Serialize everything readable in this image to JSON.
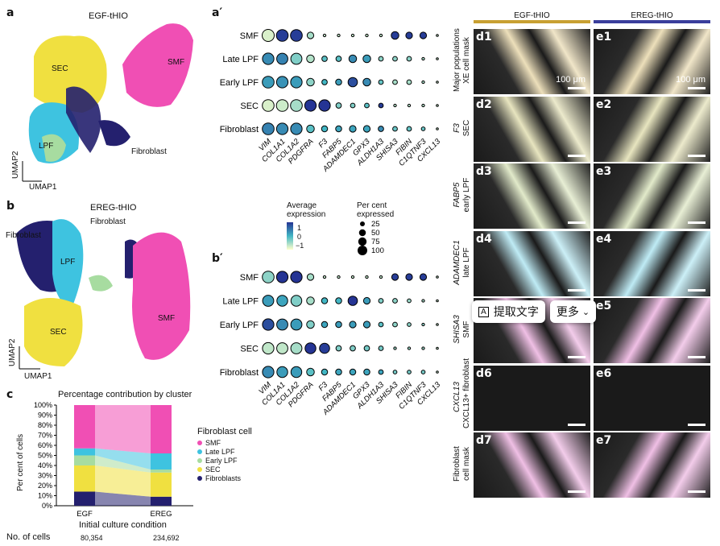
{
  "panels": {
    "a": "a",
    "b": "b",
    "c": "c",
    "a2": "a′",
    "b2": "b′"
  },
  "umap_a": {
    "title": "EGF-tHIO",
    "labels": {
      "smf": "SMF",
      "sec": "SEC",
      "lpf": "LPF",
      "fib": "Fibroblast"
    },
    "xaxis": "UMAP1",
    "yaxis": "UMAP2"
  },
  "umap_b": {
    "title": "EREG-tHIO",
    "labels": {
      "smf": "SMF",
      "sec": "SEC",
      "lpf": "LPF",
      "fib1": "Fibroblast",
      "fib2": "Fibroblast"
    },
    "xaxis": "UMAP1",
    "yaxis": "UMAP2"
  },
  "colors": {
    "smf": "#f04fb4",
    "late": "#3ec3e0",
    "early": "#a7dca0",
    "sec": "#f0e040",
    "fib": "#24206e"
  },
  "chart_data": [
    {
      "type": "scatter",
      "id": "dotplot_a",
      "genes": [
        "VIM",
        "COL1A1",
        "COL1A2",
        "PDGFRA",
        "F3",
        "FABP5",
        "ADAMDEC1",
        "GPX3",
        "ALDH1A3",
        "SHISA3",
        "FIBIN",
        "C1QTNF3",
        "CXCL13"
      ],
      "rows": [
        "SMF",
        "Late LPF",
        "Early LPF",
        "SEC",
        "Fibroblast"
      ],
      "pct": [
        [
          100,
          95,
          95,
          30,
          5,
          5,
          5,
          5,
          5,
          40,
          30,
          30,
          3
        ],
        [
          90,
          85,
          85,
          40,
          20,
          20,
          40,
          40,
          15,
          15,
          15,
          5,
          3
        ],
        [
          95,
          90,
          90,
          40,
          20,
          25,
          60,
          40,
          15,
          15,
          15,
          5,
          3
        ],
        [
          95,
          95,
          95,
          90,
          90,
          20,
          15,
          15,
          15,
          5,
          5,
          5,
          3
        ],
        [
          95,
          90,
          90,
          40,
          25,
          25,
          30,
          30,
          20,
          15,
          15,
          10,
          3
        ]
      ],
      "expr": [
        [
          -1.2,
          1.4,
          1.4,
          -0.8,
          -1,
          -1,
          -1,
          -1,
          -1,
          1.4,
          1.4,
          1.4,
          -1
        ],
        [
          0.5,
          0.6,
          -0.5,
          -0.9,
          -0.2,
          -0.2,
          0.5,
          0.3,
          -0.6,
          -0.6,
          -0.6,
          -0.8,
          -1
        ],
        [
          0.3,
          0.4,
          0.3,
          -0.6,
          0,
          0.3,
          1.2,
          0.5,
          -0.3,
          -0.8,
          -0.8,
          -0.8,
          -1
        ],
        [
          -1.2,
          -1.1,
          -0.8,
          1.5,
          1.5,
          -0.5,
          -0.5,
          -0.2,
          1.4,
          -0.9,
          -0.9,
          -0.9,
          -1
        ],
        [
          0.6,
          0.5,
          0.5,
          -0.2,
          0,
          0.2,
          0.2,
          0.2,
          0.5,
          -0.3,
          -0.3,
          -0.3,
          -1
        ]
      ]
    },
    {
      "type": "scatter",
      "id": "dotplot_b",
      "genes": [
        "VIM",
        "COL1A1",
        "COL1A2",
        "PDGFRA",
        "F3",
        "FABP5",
        "ADAMDEC1",
        "GPX3",
        "ALDH1A3",
        "SHISA3",
        "FIBIN",
        "C1QTNF3",
        "CXCL13"
      ],
      "rows": [
        "SMF",
        "Late LPF",
        "Early LPF",
        "SEC",
        "Fibroblast"
      ],
      "pct": [
        [
          95,
          90,
          90,
          30,
          5,
          5,
          5,
          5,
          5,
          30,
          30,
          30,
          3
        ],
        [
          85,
          80,
          80,
          40,
          25,
          25,
          60,
          30,
          15,
          15,
          10,
          5,
          3
        ],
        [
          90,
          85,
          85,
          40,
          25,
          25,
          30,
          30,
          15,
          15,
          10,
          5,
          3
        ],
        [
          90,
          85,
          85,
          80,
          70,
          20,
          20,
          20,
          15,
          5,
          5,
          5,
          3
        ],
        [
          90,
          80,
          80,
          40,
          25,
          25,
          25,
          25,
          15,
          10,
          10,
          10,
          3
        ]
      ],
      "expr": [
        [
          -0.6,
          1.5,
          1.5,
          -0.8,
          -1,
          -1,
          -1,
          -1,
          -1,
          1.4,
          1.4,
          1.4,
          -1
        ],
        [
          0.3,
          0.2,
          -0.5,
          -0.8,
          0,
          0,
          1.5,
          0.3,
          -0.5,
          -0.6,
          -0.7,
          -0.8,
          -1
        ],
        [
          1.2,
          0.5,
          0.3,
          -0.5,
          0.2,
          0.3,
          0.3,
          0.3,
          -0.2,
          -0.6,
          -0.6,
          -0.6,
          -1
        ],
        [
          -1,
          -1,
          -0.8,
          1.5,
          1.4,
          -0.5,
          -0.5,
          -0.4,
          -0.4,
          -0.7,
          -0.7,
          -0.7,
          -1
        ],
        [
          0.5,
          0.3,
          0.3,
          -0.2,
          0,
          0.2,
          0.2,
          0.2,
          0.2,
          -0.4,
          -0.4,
          -0.4,
          -1
        ]
      ]
    },
    {
      "type": "bar",
      "id": "stacked",
      "title": "Percentage contribution by cluster",
      "ylabel": "Per cent of cells",
      "xlabel": "Initial culture condition",
      "categories": [
        "EGF",
        "EREG"
      ],
      "yticks": [
        "0%",
        "10%",
        "20%",
        "30%",
        "40%",
        "50%",
        "60%",
        "70%",
        "80%",
        "90%",
        "100%"
      ],
      "series": [
        {
          "name": "Fibroblasts",
          "values": [
            14,
            9
          ]
        },
        {
          "name": "SEC",
          "values": [
            26,
            24
          ]
        },
        {
          "name": "Early LPF",
          "values": [
            10,
            3
          ]
        },
        {
          "name": "Late LPF",
          "values": [
            7,
            16
          ]
        },
        {
          "name": "SMF",
          "values": [
            43,
            48
          ]
        }
      ],
      "legend_title": "Fibroblast cell",
      "legend": [
        "SMF",
        "Late LPF",
        "Early LPF",
        "SEC",
        "Fibroblasts"
      ],
      "ncells_label": "No. of cells",
      "ncells": [
        "80,354",
        "234,692"
      ]
    }
  ],
  "legend_expr": {
    "title": "Average expression",
    "ticks": [
      "1",
      "0",
      "−1"
    ]
  },
  "legend_pct": {
    "title": "Per cent expressed",
    "ticks": [
      "25",
      "50",
      "75",
      "100"
    ]
  },
  "micro": {
    "header_egf": "EGF-tHIO",
    "header_ereg": "EREG-tHIO",
    "left": [
      "d1",
      "d2",
      "d3",
      "d4",
      "",
      "d6",
      "d7"
    ],
    "right": [
      "e1",
      "e2",
      "e3",
      "e4",
      "e5",
      "e6",
      "e7"
    ],
    "scale": "100 μm",
    "rowlabels": [
      [
        "Major populations",
        "XE cell mask"
      ],
      [
        "F3",
        "SEC"
      ],
      [
        "FABP5",
        "early LPF"
      ],
      [
        "ADAMDEC1",
        "late LPF"
      ],
      [
        "SHISA3",
        "SMF"
      ],
      [
        "CXCL13",
        "CXCL13+ fibroblast"
      ],
      [
        "Fibroblast",
        "cell mask"
      ]
    ]
  },
  "popup": {
    "extract": "提取文字",
    "more": "更多"
  }
}
